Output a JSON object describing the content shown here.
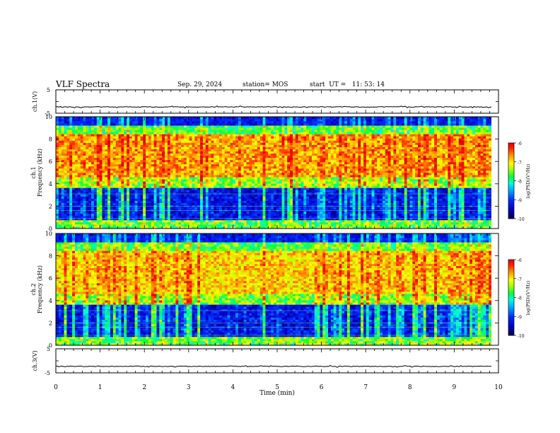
{
  "header": {
    "title": "VLF Spectra",
    "date": "Sep. 29, 2024",
    "station": "station= MOS",
    "start_ut": "start  UT =   11: 53: 14"
  },
  "chart_data": [
    {
      "type": "line",
      "name": "ch1-waveform",
      "ylabel": "ch.1(V)",
      "yticks": [
        "5",
        "-5"
      ],
      "ylim": [
        -5,
        5
      ],
      "xlim": [
        0,
        10
      ],
      "baseline": -2.3,
      "data_end": 9.84
    },
    {
      "type": "heatmap",
      "name": "ch1-spectrogram",
      "ylabel": "ch.1\nFrequency (kHz)",
      "xlim": [
        0,
        10
      ],
      "ylim": [
        0,
        10
      ],
      "yticks": [
        "0",
        "2",
        "4",
        "6",
        "8",
        "10"
      ],
      "data_end": 9.84,
      "colorbar": {
        "label": "log(PSD)(V²/Hz)",
        "ticks": [
          "-6",
          "-7",
          "-8",
          "-9",
          "-10"
        ],
        "range": [
          -10,
          -6
        ],
        "colormap": "rainbow"
      }
    },
    {
      "type": "heatmap",
      "name": "ch2-spectrogram",
      "ylabel": "ch.2\nFrequency (kHz)",
      "xlim": [
        0,
        10
      ],
      "ylim": [
        0,
        10
      ],
      "yticks": [
        "0",
        "2",
        "4",
        "6",
        "8",
        "10"
      ],
      "data_end": 9.84,
      "colorbar": {
        "label": "log(PSD)(V²/Hz)",
        "ticks": [
          "-6",
          "-7",
          "-8",
          "-9",
          "-10"
        ],
        "range": [
          -10,
          -6
        ],
        "colormap": "rainbow"
      }
    },
    {
      "type": "line",
      "name": "ch3-waveform",
      "ylabel": "ch.3(V)",
      "yticks": [
        "5",
        "-5"
      ],
      "ylim": [
        -5,
        5
      ],
      "xlim": [
        0,
        10
      ],
      "baseline": -2.3,
      "data_end": 9.84
    }
  ],
  "xaxis": {
    "label": "Time  (min)",
    "ticks": [
      "0",
      "1",
      "2",
      "3",
      "4",
      "5",
      "6",
      "7",
      "8",
      "9",
      "10"
    ]
  },
  "colors": {
    "deep-blue": "#00007a",
    "blue": "#0000ff",
    "cyan": "#00c8ff",
    "green": "#00ff50",
    "yellow": "#ffff00",
    "orange": "#ff9000",
    "red": "#ff2000",
    "waveform": "#000000"
  }
}
